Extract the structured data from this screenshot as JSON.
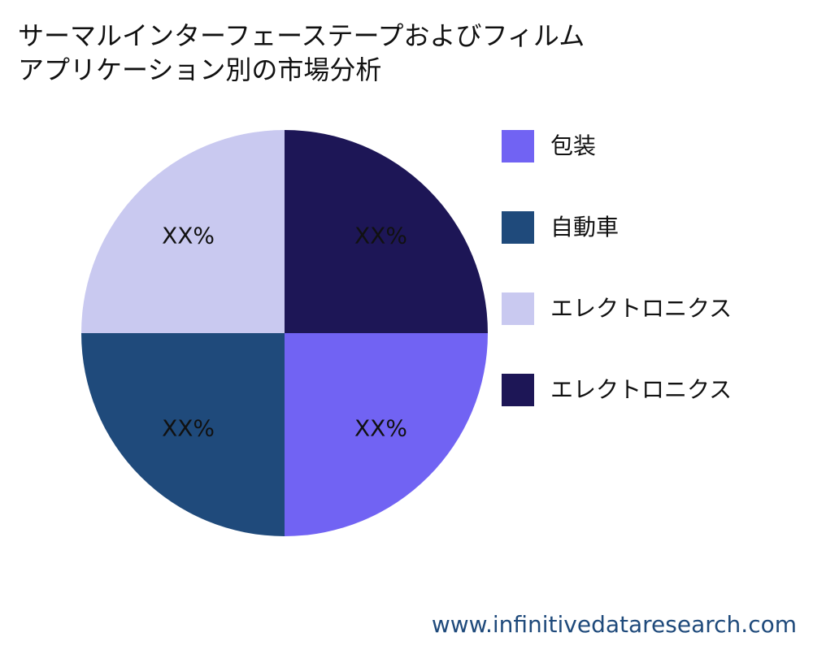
{
  "chart_data": {
    "type": "pie",
    "title": [
      "サーマルインターフェーステープおよびフィルム",
      "アプリケーション別の市場分析"
    ],
    "categories": [
      "包装",
      "自動車",
      "エレクトロニクス",
      "エレクトロニクス"
    ],
    "values": [
      25,
      25,
      25,
      25
    ],
    "value_labels": [
      "XX%",
      "XX%",
      "XX%",
      "XX%"
    ],
    "colors": [
      "#7163f3",
      "#1f4a7b",
      "#c9c9f0",
      "#1d1656"
    ],
    "legend": "right"
  },
  "source": "www.infinitivedataresearch.com"
}
